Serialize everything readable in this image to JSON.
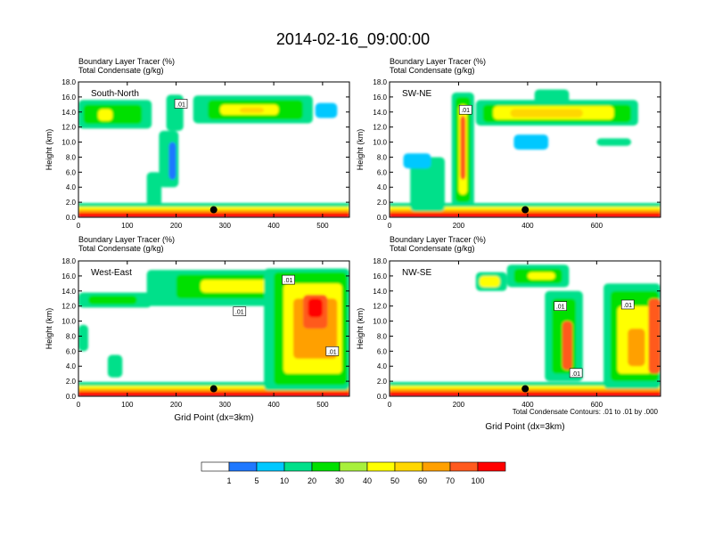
{
  "title": "2014-02-16_09:00:00",
  "footnote": "Total Condensate Contours: .01 to .01 by .000",
  "colorbar": {
    "colors": [
      "#ffffff",
      "#1f78ff",
      "#00c8ff",
      "#00e08a",
      "#00e000",
      "#a8f03c",
      "#ffff00",
      "#ffd700",
      "#ffa000",
      "#ff5a1e",
      "#ff0000"
    ],
    "labels": [
      "1",
      "5",
      "10",
      "20",
      "30",
      "40",
      "50",
      "60",
      "70",
      "100"
    ]
  },
  "chart_data": [
    {
      "type": "heatmap",
      "header_line1": "Boundary Layer Tracer    (%)",
      "header_line2": "Total Condensate    (g/kg)",
      "panel_label": "South-North",
      "ylabel": "Height (km)",
      "xlabel": "",
      "xlim": [
        0,
        555
      ],
      "ylim": [
        0,
        18
      ],
      "xticks": [
        "0",
        "100",
        "200",
        "300",
        "400",
        "500"
      ],
      "yticks": [
        "0.0",
        "2.0",
        "4.0",
        "6.0",
        "8.0",
        "10.0",
        "12.0",
        "14.0",
        "16.0",
        "18.0"
      ],
      "contour_labels": [
        {
          "text": ".01",
          "x": 210,
          "y": 15.1
        }
      ],
      "marker": {
        "x": 277,
        "y": 1.0
      }
    },
    {
      "type": "heatmap",
      "header_line1": "Boundary Layer Tracer    (%)",
      "header_line2": "Total Condensate    (g/kg)",
      "panel_label": "SW-NE",
      "ylabel": "Height (km)",
      "xlabel": "",
      "xlim": [
        0,
        785
      ],
      "ylim": [
        0,
        18
      ],
      "xticks": [
        "0",
        "200",
        "400",
        "600"
      ],
      "yticks": [
        "0.0",
        "2.0",
        "4.0",
        "6.0",
        "8.0",
        "10.0",
        "12.0",
        "14.0",
        "16.0",
        "18.0"
      ],
      "contour_labels": [
        {
          "text": ".01",
          "x": 220,
          "y": 14.3
        }
      ],
      "marker": {
        "x": 393,
        "y": 1.0
      }
    },
    {
      "type": "heatmap",
      "header_line1": "Boundary Layer Tracer    (%)",
      "header_line2": "Total Condensate    (g/kg)",
      "panel_label": "West-East",
      "ylabel": "Height (km)",
      "xlabel": "Grid Point (dx=3km)",
      "xlim": [
        0,
        555
      ],
      "ylim": [
        0,
        18
      ],
      "xticks": [
        "0",
        "100",
        "200",
        "300",
        "400",
        "500"
      ],
      "yticks": [
        "0.0",
        "2.0",
        "4.0",
        "6.0",
        "8.0",
        "10.0",
        "12.0",
        "14.0",
        "16.0",
        "18.0"
      ],
      "contour_labels": [
        {
          "text": ".01",
          "x": 430,
          "y": 15.5
        },
        {
          "text": ".01",
          "x": 330,
          "y": 11.3
        },
        {
          "text": ".01",
          "x": 520,
          "y": 6.0
        }
      ],
      "marker": {
        "x": 277,
        "y": 1.0
      }
    },
    {
      "type": "heatmap",
      "header_line1": "Boundary Layer Tracer    (%)",
      "header_line2": "Total Condensate    (g/kg)",
      "panel_label": "NW-SE",
      "ylabel": "Height (km)",
      "xlabel": "Grid Point (dx=3km)",
      "xlim": [
        0,
        785
      ],
      "ylim": [
        0,
        18
      ],
      "xticks": [
        "0",
        "200",
        "400",
        "600"
      ],
      "yticks": [
        "0.0",
        "2.0",
        "4.0",
        "6.0",
        "8.0",
        "10.0",
        "12.0",
        "14.0",
        "16.0",
        "18.0"
      ],
      "contour_labels": [
        {
          "text": ".01",
          "x": 495,
          "y": 12.0
        },
        {
          "text": ".01",
          "x": 690,
          "y": 12.2
        },
        {
          "text": ".01",
          "x": 540,
          "y": 3.1
        }
      ],
      "marker": {
        "x": 393,
        "y": 1.0
      }
    }
  ]
}
